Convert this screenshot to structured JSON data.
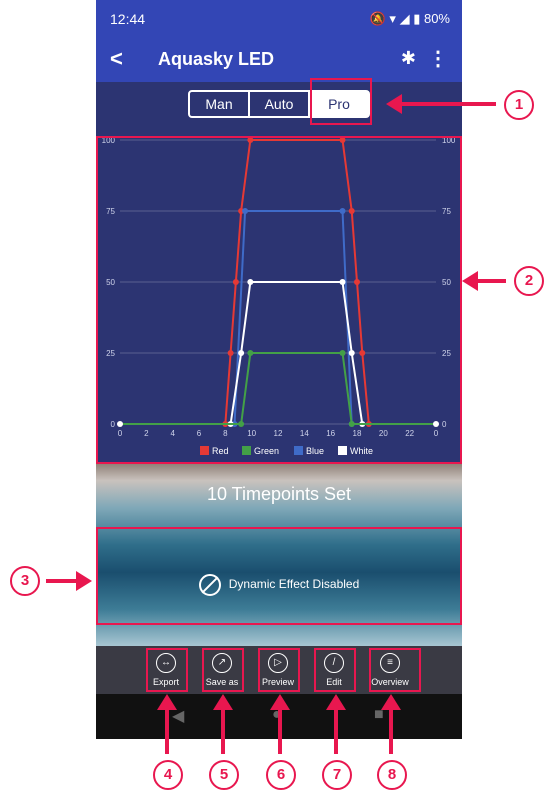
{
  "status": {
    "time": "12:44",
    "battery": "80%"
  },
  "appbar": {
    "title": "Aquasky LED"
  },
  "modes": [
    "Man",
    "Auto",
    "Pro"
  ],
  "chart_data": {
    "type": "line",
    "x": [
      0,
      2,
      4,
      6,
      8,
      10,
      12,
      14,
      16,
      18,
      20,
      22,
      0
    ],
    "xticks": [
      "0",
      "2",
      "4",
      "6",
      "8",
      "10",
      "12",
      "14",
      "16",
      "18",
      "20",
      "22",
      "0"
    ],
    "yticks": [
      "0",
      "25",
      "50",
      "75",
      "100"
    ],
    "ylim": [
      0,
      100
    ],
    "legend": [
      "Red",
      "Green",
      "Blue",
      "White"
    ],
    "series": [
      {
        "name": "Red",
        "color": "#e53935",
        "points": [
          [
            0,
            0
          ],
          [
            8.0,
            0
          ],
          [
            8.4,
            25
          ],
          [
            8.8,
            50
          ],
          [
            9.2,
            75
          ],
          [
            9.9,
            100
          ],
          [
            16.9,
            100
          ],
          [
            17.6,
            75
          ],
          [
            18.0,
            50
          ],
          [
            18.4,
            25
          ],
          [
            18.9,
            0
          ],
          [
            24,
            0
          ]
        ]
      },
      {
        "name": "Blue",
        "color": "#3f6bc8",
        "points": [
          [
            0,
            0
          ],
          [
            8.7,
            0
          ],
          [
            9.5,
            75
          ],
          [
            16.9,
            75
          ],
          [
            17.6,
            0
          ],
          [
            24,
            0
          ]
        ]
      },
      {
        "name": "White",
        "color": "#ffffff",
        "points": [
          [
            0,
            0
          ],
          [
            8.4,
            0
          ],
          [
            9.2,
            25
          ],
          [
            9.9,
            50
          ],
          [
            16.9,
            50
          ],
          [
            17.6,
            25
          ],
          [
            18.4,
            0
          ],
          [
            24,
            0
          ]
        ]
      },
      {
        "name": "Green",
        "color": "#43a047",
        "points": [
          [
            0,
            0
          ],
          [
            9.2,
            0
          ],
          [
            9.9,
            25
          ],
          [
            16.9,
            25
          ],
          [
            17.6,
            0
          ],
          [
            24,
            0
          ]
        ]
      }
    ]
  },
  "info": {
    "timepoints": "10 Timepoints Set",
    "dynamic": "Dynamic Effect Disabled"
  },
  "toolbar": {
    "export": "Export",
    "save_as": "Save as",
    "preview": "Preview",
    "edit": "Edit",
    "overview": "Overview"
  },
  "callouts": [
    "1",
    "2",
    "3",
    "4",
    "5",
    "6",
    "7",
    "8"
  ]
}
